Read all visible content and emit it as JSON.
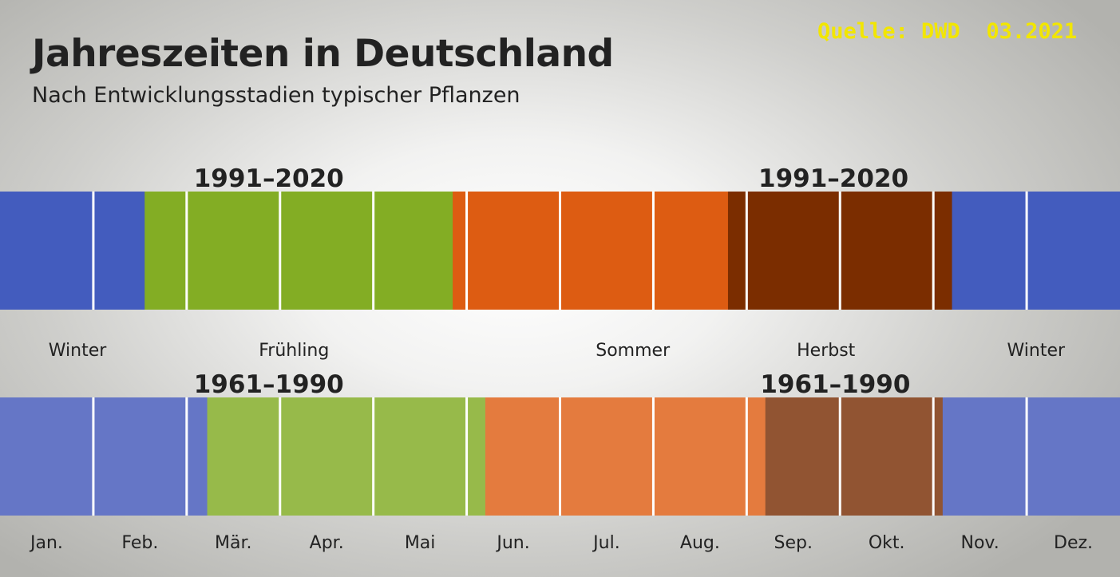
{
  "title": "Jahreszeiten in Deutschland",
  "subtitle": "Nach Entwicklungsstadien typischer Pflanzen",
  "source": "Quelle: DWD  03.2021",
  "chart_data": {
    "type": "bar",
    "orientation": "horizontal-timeline",
    "stacked": true,
    "x_unit": "month",
    "x_range": [
      0,
      12
    ],
    "categories": [
      "1991–2020",
      "1961–1990"
    ],
    "months": [
      "Jan.",
      "Feb.",
      "Mär.",
      "Apr.",
      "Mai",
      "Jun.",
      "Jul.",
      "Aug.",
      "Sep.",
      "Okt.",
      "Nov.",
      "Dez."
    ],
    "season_labels": [
      {
        "text": "Winter",
        "month": 0.83
      },
      {
        "text": "Frühling",
        "month": 3.15
      },
      {
        "text": "Sommer",
        "month": 6.78
      },
      {
        "text": "Herbst",
        "month": 8.85
      },
      {
        "text": "Winter",
        "month": 11.1
      }
    ],
    "period_labels": [
      {
        "text": "1991–2020",
        "row": 0,
        "month": 2.88
      },
      {
        "text": "1991–2020",
        "row": 0,
        "month": 8.93
      },
      {
        "text": "1961–1990",
        "row": 1,
        "month": 2.88
      },
      {
        "text": "1961–1990",
        "row": 1,
        "month": 8.95
      }
    ],
    "rows": [
      {
        "name": "1991–2020",
        "segments": [
          {
            "season": "Winter",
            "start": 0.0,
            "end": 1.55,
            "color": "#435cbe"
          },
          {
            "season": "Frühling",
            "start": 1.55,
            "end": 4.85,
            "color": "#83ad24"
          },
          {
            "season": "Sommer",
            "start": 4.85,
            "end": 7.8,
            "color": "#dd5c12"
          },
          {
            "season": "Herbst",
            "start": 7.8,
            "end": 10.2,
            "color": "#7b2d00"
          },
          {
            "season": "Winter",
            "start": 10.2,
            "end": 12.0,
            "color": "#435cbe"
          }
        ]
      },
      {
        "name": "1961–1990",
        "segments": [
          {
            "season": "Winter",
            "start": 0.0,
            "end": 2.22,
            "color": "#6576c6"
          },
          {
            "season": "Frühling",
            "start": 2.22,
            "end": 5.2,
            "color": "#97ba4a"
          },
          {
            "season": "Sommer",
            "start": 5.2,
            "end": 8.2,
            "color": "#e47b3e"
          },
          {
            "season": "Herbst",
            "start": 8.2,
            "end": 10.1,
            "color": "#915432"
          },
          {
            "season": "Winter",
            "start": 10.1,
            "end": 12.0,
            "color": "#6576c6"
          }
        ]
      }
    ],
    "colors": {
      "month_divider": "#ffffff",
      "text": "#222222",
      "source_text": "#f2e600"
    }
  }
}
